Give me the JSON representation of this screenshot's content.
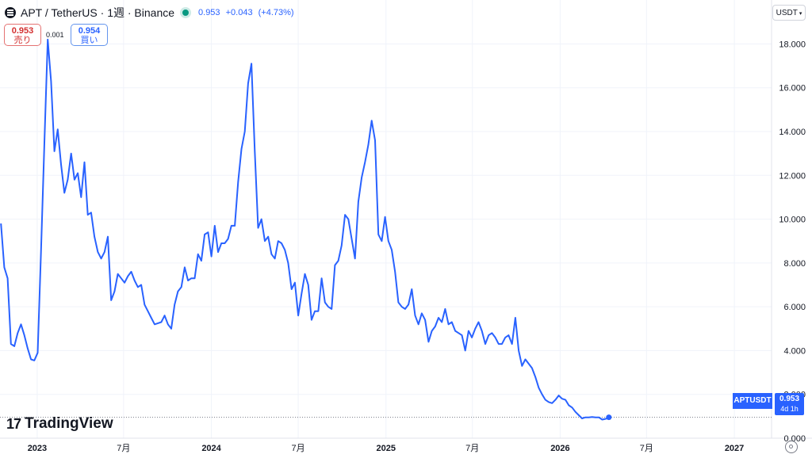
{
  "header": {
    "symbol_title": "APT / TetherUS · 1週 · Binance",
    "price": "0.953",
    "change": "+0.043",
    "change_pct": "(+4.73%)"
  },
  "trade": {
    "sell_price": "0.953",
    "sell_label": "売り",
    "spread": "0.001",
    "buy_price": "0.954",
    "buy_label": "買い"
  },
  "currency_button": "USDT",
  "brand": "TradingView",
  "price_tag": {
    "symbol": "APTUSDT",
    "value": "0.953",
    "countdown": "4d 1h"
  },
  "colors": {
    "line": "#2962ff",
    "up": "#089981",
    "sell": "#d32f2f"
  },
  "chart_data": {
    "type": "line",
    "title": "APT / TetherUS · 1週 · Binance",
    "ylim": [
      0,
      19.5
    ],
    "y_ticks": [
      0,
      2,
      4,
      6,
      8,
      10,
      12,
      14,
      16,
      18
    ],
    "y_tick_labels": [
      "0.000",
      "2.000",
      "4.000",
      "6.000",
      "8.000",
      "10.000",
      "12.000",
      "14.000",
      "16.000",
      "18.000"
    ],
    "xlim": [
      "2022-10-15",
      "2027-03-20"
    ],
    "x_ticks": [
      "2023-01-01",
      "2023-07-01",
      "2024-01-01",
      "2024-07-01",
      "2025-01-01",
      "2025-07-01",
      "2026-01-01",
      "2026-07-01",
      "2027-01-01"
    ],
    "x_tick_labels": [
      "2023",
      "7月",
      "2024",
      "7月",
      "2025",
      "7月",
      "2026",
      "7月",
      "2027"
    ],
    "last_price": 0.953,
    "grid": true,
    "series": [
      {
        "values": [
          [
            "2022-10-17",
            9.8
          ],
          [
            "2022-10-24",
            7.8
          ],
          [
            "2022-10-31",
            7.3
          ],
          [
            "2022-11-07",
            4.3
          ],
          [
            "2022-11-14",
            4.2
          ],
          [
            "2022-11-21",
            4.8
          ],
          [
            "2022-11-28",
            5.2
          ],
          [
            "2022-12-05",
            4.7
          ],
          [
            "2022-12-12",
            4.1
          ],
          [
            "2022-12-19",
            3.6
          ],
          [
            "2022-12-26",
            3.55
          ],
          [
            "2023-01-02",
            3.9
          ],
          [
            "2023-01-09",
            8.5
          ],
          [
            "2023-01-16",
            13.5
          ],
          [
            "2023-01-23",
            18.2
          ],
          [
            "2023-01-30",
            16.3
          ],
          [
            "2023-02-06",
            13.1
          ],
          [
            "2023-02-13",
            14.1
          ],
          [
            "2023-02-20",
            12.5
          ],
          [
            "2023-02-27",
            11.2
          ],
          [
            "2023-03-06",
            11.8
          ],
          [
            "2023-03-13",
            13.0
          ],
          [
            "2023-03-20",
            11.8
          ],
          [
            "2023-03-27",
            12.1
          ],
          [
            "2023-04-03",
            11.0
          ],
          [
            "2023-04-10",
            12.6
          ],
          [
            "2023-04-17",
            10.2
          ],
          [
            "2023-04-24",
            10.3
          ],
          [
            "2023-05-01",
            9.2
          ],
          [
            "2023-05-08",
            8.5
          ],
          [
            "2023-05-15",
            8.2
          ],
          [
            "2023-05-22",
            8.5
          ],
          [
            "2023-05-29",
            9.2
          ],
          [
            "2023-06-05",
            6.3
          ],
          [
            "2023-06-12",
            6.7
          ],
          [
            "2023-06-19",
            7.5
          ],
          [
            "2023-06-26",
            7.3
          ],
          [
            "2023-07-03",
            7.1
          ],
          [
            "2023-07-10",
            7.4
          ],
          [
            "2023-07-17",
            7.6
          ],
          [
            "2023-07-24",
            7.2
          ],
          [
            "2023-07-31",
            6.9
          ],
          [
            "2023-08-07",
            7.0
          ],
          [
            "2023-08-14",
            6.1
          ],
          [
            "2023-08-21",
            5.8
          ],
          [
            "2023-08-28",
            5.5
          ],
          [
            "2023-09-04",
            5.2
          ],
          [
            "2023-09-11",
            5.25
          ],
          [
            "2023-09-18",
            5.3
          ],
          [
            "2023-09-25",
            5.6
          ],
          [
            "2023-10-02",
            5.2
          ],
          [
            "2023-10-09",
            5.0
          ],
          [
            "2023-10-16",
            6.1
          ],
          [
            "2023-10-23",
            6.7
          ],
          [
            "2023-10-30",
            6.9
          ],
          [
            "2023-11-06",
            7.8
          ],
          [
            "2023-11-13",
            7.2
          ],
          [
            "2023-11-20",
            7.3
          ],
          [
            "2023-11-27",
            7.3
          ],
          [
            "2023-12-04",
            8.4
          ],
          [
            "2023-12-11",
            8.1
          ],
          [
            "2023-12-18",
            9.3
          ],
          [
            "2023-12-25",
            9.4
          ],
          [
            "2024-01-01",
            8.3
          ],
          [
            "2024-01-08",
            9.7
          ],
          [
            "2024-01-15",
            8.5
          ],
          [
            "2024-01-22",
            8.9
          ],
          [
            "2024-01-29",
            8.9
          ],
          [
            "2024-02-05",
            9.1
          ],
          [
            "2024-02-12",
            9.7
          ],
          [
            "2024-02-19",
            9.7
          ],
          [
            "2024-02-26",
            11.7
          ],
          [
            "2024-03-04",
            13.2
          ],
          [
            "2024-03-11",
            14.0
          ],
          [
            "2024-03-18",
            16.2
          ],
          [
            "2024-03-25",
            17.1
          ],
          [
            "2024-04-01",
            13.1
          ],
          [
            "2024-04-08",
            9.6
          ],
          [
            "2024-04-15",
            10.0
          ],
          [
            "2024-04-22",
            9.0
          ],
          [
            "2024-04-29",
            9.2
          ],
          [
            "2024-05-06",
            8.4
          ],
          [
            "2024-05-13",
            8.2
          ],
          [
            "2024-05-20",
            9.0
          ],
          [
            "2024-05-27",
            8.9
          ],
          [
            "2024-06-03",
            8.6
          ],
          [
            "2024-06-10",
            8.0
          ],
          [
            "2024-06-17",
            6.8
          ],
          [
            "2024-06-24",
            7.1
          ],
          [
            "2024-07-01",
            5.6
          ],
          [
            "2024-07-08",
            6.6
          ],
          [
            "2024-07-15",
            7.5
          ],
          [
            "2024-07-22",
            7.0
          ],
          [
            "2024-07-29",
            5.4
          ],
          [
            "2024-08-05",
            5.8
          ],
          [
            "2024-08-12",
            5.8
          ],
          [
            "2024-08-19",
            7.3
          ],
          [
            "2024-08-26",
            6.2
          ],
          [
            "2024-09-02",
            6.0
          ],
          [
            "2024-09-09",
            5.9
          ],
          [
            "2024-09-16",
            7.9
          ],
          [
            "2024-09-23",
            8.1
          ],
          [
            "2024-09-30",
            8.8
          ],
          [
            "2024-10-07",
            10.2
          ],
          [
            "2024-10-14",
            10.0
          ],
          [
            "2024-10-21",
            9.1
          ],
          [
            "2024-10-28",
            8.2
          ],
          [
            "2024-11-04",
            10.8
          ],
          [
            "2024-11-11",
            11.9
          ],
          [
            "2024-11-18",
            12.6
          ],
          [
            "2024-11-25",
            13.4
          ],
          [
            "2024-12-02",
            14.5
          ],
          [
            "2024-12-09",
            13.6
          ],
          [
            "2024-12-16",
            9.3
          ],
          [
            "2024-12-23",
            9.0
          ],
          [
            "2024-12-30",
            10.1
          ],
          [
            "2025-01-06",
            9.0
          ],
          [
            "2025-01-13",
            8.6
          ],
          [
            "2025-01-20",
            7.6
          ],
          [
            "2025-01-27",
            6.2
          ],
          [
            "2025-02-03",
            6.0
          ],
          [
            "2025-02-10",
            5.9
          ],
          [
            "2025-02-17",
            6.1
          ],
          [
            "2025-02-24",
            6.8
          ],
          [
            "2025-03-03",
            5.6
          ],
          [
            "2025-03-10",
            5.2
          ],
          [
            "2025-03-17",
            5.7
          ],
          [
            "2025-03-24",
            5.4
          ],
          [
            "2025-03-31",
            4.4
          ],
          [
            "2025-04-07",
            4.9
          ],
          [
            "2025-04-14",
            5.1
          ],
          [
            "2025-04-21",
            5.5
          ],
          [
            "2025-04-28",
            5.3
          ],
          [
            "2025-05-05",
            5.9
          ],
          [
            "2025-05-12",
            5.2
          ],
          [
            "2025-05-19",
            5.3
          ],
          [
            "2025-05-26",
            4.9
          ],
          [
            "2025-06-02",
            4.8
          ],
          [
            "2025-06-09",
            4.7
          ],
          [
            "2025-06-16",
            4.0
          ],
          [
            "2025-06-23",
            4.9
          ],
          [
            "2025-06-30",
            4.6
          ],
          [
            "2025-07-07",
            5.0
          ],
          [
            "2025-07-14",
            5.3
          ],
          [
            "2025-07-21",
            4.9
          ],
          [
            "2025-07-28",
            4.3
          ],
          [
            "2025-08-04",
            4.7
          ],
          [
            "2025-08-11",
            4.8
          ],
          [
            "2025-08-18",
            4.6
          ],
          [
            "2025-08-25",
            4.3
          ],
          [
            "2025-09-01",
            4.3
          ],
          [
            "2025-09-08",
            4.6
          ],
          [
            "2025-09-15",
            4.7
          ],
          [
            "2025-09-22",
            4.3
          ],
          [
            "2025-09-29",
            5.5
          ],
          [
            "2025-10-06",
            4.0
          ],
          [
            "2025-10-13",
            3.3
          ],
          [
            "2025-10-20",
            3.6
          ],
          [
            "2025-10-27",
            3.4
          ],
          [
            "2025-11-03",
            3.2
          ],
          [
            "2025-11-10",
            2.8
          ],
          [
            "2025-11-17",
            2.3
          ],
          [
            "2025-11-24",
            2.0
          ],
          [
            "2025-12-01",
            1.75
          ],
          [
            "2025-12-08",
            1.65
          ],
          [
            "2025-12-15",
            1.6
          ],
          [
            "2025-12-22",
            1.75
          ],
          [
            "2025-12-29",
            1.95
          ],
          [
            "2026-01-05",
            1.8
          ],
          [
            "2026-01-12",
            1.75
          ],
          [
            "2026-01-19",
            1.5
          ],
          [
            "2026-01-26",
            1.4
          ],
          [
            "2026-02-02",
            1.2
          ],
          [
            "2026-02-09",
            1.05
          ],
          [
            "2026-02-16",
            0.9
          ],
          [
            "2026-02-23",
            0.95
          ],
          [
            "2026-03-02",
            0.95
          ],
          [
            "2026-03-09",
            0.97
          ],
          [
            "2026-03-16",
            0.95
          ],
          [
            "2026-03-23",
            0.95
          ],
          [
            "2026-03-30",
            0.85
          ],
          [
            "2026-04-06",
            0.88
          ],
          [
            "2026-04-13",
            0.953
          ]
        ]
      }
    ]
  }
}
